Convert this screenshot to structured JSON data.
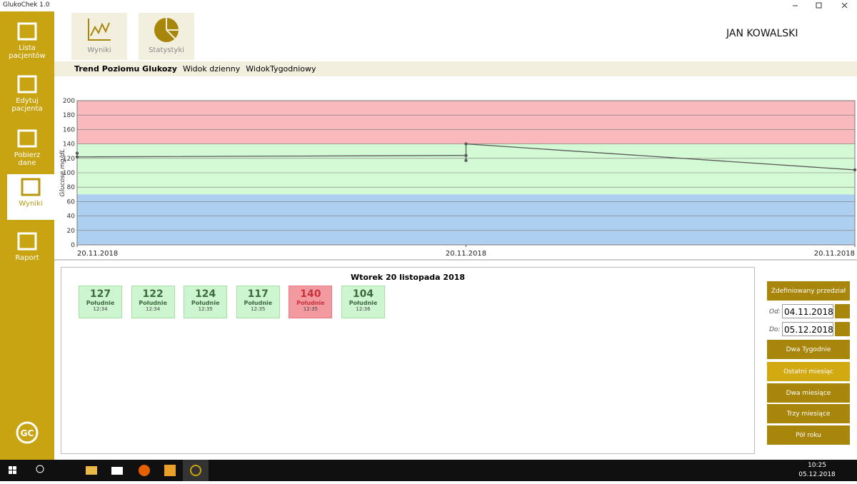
{
  "window": {
    "title": "GlukoChek 1.0"
  },
  "sidebar": [
    "Lista pacjentów",
    "Edytuj pacjenta",
    "Pobierz dane",
    "Wyniki",
    "Raport"
  ],
  "tabs": [
    "Wyniki",
    "Statystyki"
  ],
  "user": "JAN KOWALSKI",
  "subnav": [
    "Trend Poziomu Glukozy",
    "Widok dzienny",
    "WidokTygodniowy"
  ],
  "chart_data": {
    "type": "line",
    "ylabel": "Glucose mg/dL",
    "x": [
      "12:34",
      "12:34",
      "12:35",
      "12:35",
      "12:35",
      "12:36"
    ],
    "series": [
      {
        "color": "#5a5a5a",
        "values": [
          127,
          122,
          124,
          117,
          140,
          104
        ]
      }
    ],
    "xlim": [
      "12:34",
      "12:36"
    ],
    "xticks": [
      {
        "value": "12:34",
        "label": "20.11.2018"
      },
      {
        "value": "12:35",
        "label": "20.11.2018"
      },
      {
        "value": "12:36",
        "label": "20.11.2018"
      }
    ],
    "ylim": [
      0,
      200
    ],
    "yticks": [
      0,
      20,
      40,
      60,
      80,
      100,
      120,
      140,
      160,
      180,
      200
    ],
    "grid": true,
    "bands": [
      {
        "from": 140,
        "to": 200,
        "color": "#f9b9bd"
      },
      {
        "from": 70,
        "to": 140,
        "color": "#d4fad5"
      },
      {
        "from": 0,
        "to": 70,
        "color": "#aed0f0"
      }
    ]
  },
  "day_panel": {
    "title": "Wtorek 20 listopada 2018",
    "cards": [
      {
        "label": "Południe",
        "color": "green"
      },
      {
        "label": "Południe",
        "color": "green"
      },
      {
        "label": "Południe",
        "color": "green"
      },
      {
        "label": "Południe",
        "color": "green"
      },
      {
        "label": "Południe",
        "color": "red"
      },
      {
        "label": "Południe",
        "color": "green"
      }
    ]
  },
  "range_panel": {
    "button": "Zdefiniowany przedział",
    "from_label": "Od:",
    "from": "04.11.2018",
    "to_label": "Do:",
    "to": "05.12.2018",
    "presets": [
      "Dwa Tygodnie",
      "Ostatni miesiąc",
      "Dwa miesiące",
      "Trzy miesiące",
      "Pół roku"
    ]
  },
  "taskbar": {
    "time": "10:25",
    "date": "05.12.2018"
  }
}
